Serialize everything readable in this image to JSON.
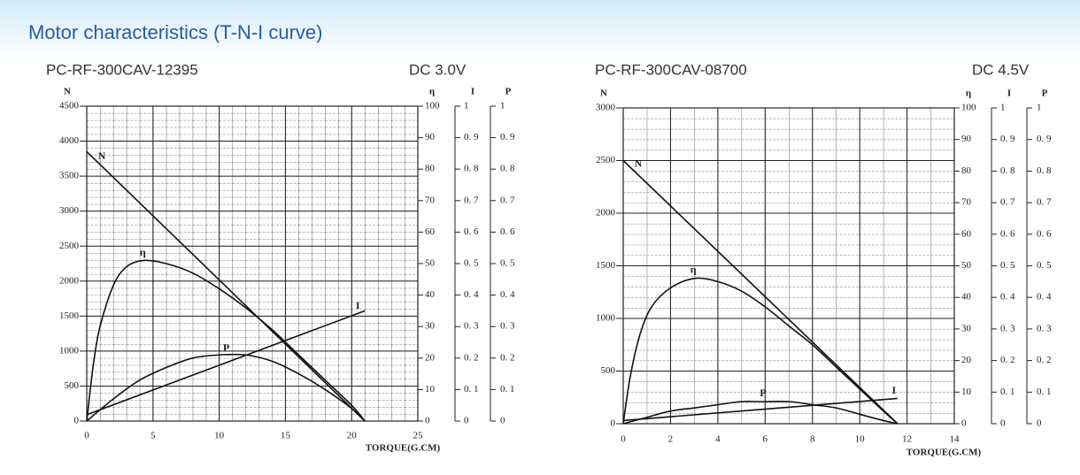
{
  "title": "Motor characteristics (T-N-I curve)",
  "chart_data": [
    {
      "type": "line",
      "title": "PC-RF-300CAV-12395",
      "subtitle": "DC 3.0V",
      "x_label": "TORQUE(G.CM)",
      "y_label": "N",
      "y2_label": "η",
      "y3_label": "I",
      "y4_label": "P",
      "grid": true,
      "color": "#111111",
      "xlim": [
        0,
        25
      ],
      "xticks": [
        0,
        5,
        10,
        15,
        20,
        25
      ],
      "ylim": [
        0,
        4500
      ],
      "yticks": [
        0,
        500,
        1000,
        1500,
        2000,
        2500,
        3000,
        3500,
        4000,
        4500
      ],
      "y2lim": [
        0,
        100
      ],
      "y2ticks": [
        0,
        10,
        20,
        30,
        40,
        50,
        60,
        70,
        80,
        90,
        100
      ],
      "y3lim": [
        0,
        1
      ],
      "y3ticks": [
        0,
        {
          "value": 0.1,
          "label": "0. 1"
        },
        {
          "value": 0.2,
          "label": "0. 2"
        },
        {
          "value": 0.3,
          "label": "0. 3"
        },
        {
          "value": 0.4,
          "label": "0. 4"
        },
        {
          "value": 0.5,
          "label": "0. 5"
        },
        {
          "value": 0.6,
          "label": "0. 6"
        },
        {
          "value": 0.7,
          "label": "0. 7"
        },
        {
          "value": 0.8,
          "label": "0. 8"
        },
        {
          "value": 0.9,
          "label": "0. 9"
        },
        1
      ],
      "y4lim": [
        0,
        1
      ],
      "y4ticks": [
        0,
        {
          "value": 0.1,
          "label": "0. 1"
        },
        {
          "value": 0.2,
          "label": "0. 2"
        },
        {
          "value": 0.3,
          "label": "0. 3"
        },
        {
          "value": 0.4,
          "label": "0. 4"
        },
        {
          "value": 0.5,
          "label": "0. 5"
        },
        {
          "value": 0.6,
          "label": "0. 6"
        },
        {
          "value": 0.7,
          "label": "0. 7"
        },
        {
          "value": 0.8,
          "label": "0. 8"
        },
        {
          "value": 0.9,
          "label": "0. 9"
        },
        1
      ],
      "series": [
        {
          "name": "N",
          "axis": "y",
          "x": [
            0,
            21
          ],
          "values": [
            3850,
            0
          ]
        },
        {
          "name": "η",
          "axis": "y2",
          "x": [
            0,
            0.5,
            1,
            2,
            3,
            4.3,
            6,
            8,
            10,
            12,
            14,
            16,
            18,
            20,
            21
          ],
          "values": [
            0,
            18,
            30,
            43,
            49,
            51,
            50,
            47,
            42,
            36,
            29,
            21,
            13,
            5,
            0
          ]
        },
        {
          "name": "P",
          "axis": "y4",
          "x": [
            0,
            2,
            4,
            6,
            8,
            10,
            12,
            14,
            16,
            18,
            20,
            21
          ],
          "values": [
            0,
            0.07,
            0.13,
            0.17,
            0.2,
            0.21,
            0.21,
            0.19,
            0.15,
            0.1,
            0.04,
            0
          ]
        },
        {
          "name": "I",
          "axis": "y3",
          "x": [
            0,
            21
          ],
          "values": [
            0.02,
            0.35
          ]
        }
      ]
    },
    {
      "type": "line",
      "title": "PC-RF-300CAV-08700",
      "subtitle": "DC 4.5V",
      "x_label": "TORQUE(G.CM)",
      "y_label": "N",
      "y2_label": "η",
      "y3_label": "I",
      "y4_label": "P",
      "grid": true,
      "color": "#111111",
      "xlim": [
        0,
        14
      ],
      "xticks": [
        0,
        2,
        4,
        6,
        8,
        10,
        12,
        14
      ],
      "ylim": [
        0,
        3000
      ],
      "yticks": [
        0,
        500,
        1000,
        1500,
        2000,
        2500,
        3000
      ],
      "y2lim": [
        0,
        100
      ],
      "y2ticks": [
        0,
        10,
        20,
        30,
        40,
        50,
        60,
        70,
        80,
        90,
        100
      ],
      "y3lim": [
        0,
        1
      ],
      "y3ticks": [
        0,
        {
          "value": 0.1,
          "label": "0. 1"
        },
        {
          "value": 0.2,
          "label": "0. 2"
        },
        {
          "value": 0.3,
          "label": "0. 3"
        },
        {
          "value": 0.4,
          "label": "0. 4"
        },
        {
          "value": 0.5,
          "label": "0. 5"
        },
        {
          "value": 0.6,
          "label": "0. 6"
        },
        {
          "value": 0.7,
          "label": "0. 7"
        },
        {
          "value": 0.8,
          "label": "0. 8"
        },
        {
          "value": 0.9,
          "label": "0. 9"
        },
        1
      ],
      "y4lim": [
        0,
        1
      ],
      "y4ticks": [
        0,
        {
          "value": 0.1,
          "label": "0. 1"
        },
        {
          "value": 0.2,
          "label": "0. 2"
        },
        {
          "value": 0.3,
          "label": "0. 3"
        },
        {
          "value": 0.4,
          "label": "0. 4"
        },
        {
          "value": 0.5,
          "label": "0. 5"
        },
        {
          "value": 0.6,
          "label": "0. 6"
        },
        {
          "value": 0.7,
          "label": "0. 7"
        },
        {
          "value": 0.8,
          "label": "0. 8"
        },
        {
          "value": 0.9,
          "label": "0. 9"
        },
        1
      ],
      "series": [
        {
          "name": "N",
          "axis": "y",
          "x": [
            0,
            11.6
          ],
          "values": [
            2500,
            0
          ]
        },
        {
          "name": "η",
          "axis": "y2",
          "x": [
            0,
            0.3,
            0.7,
            1.2,
            2,
            3,
            4,
            5,
            6,
            7,
            8,
            9,
            10,
            11,
            11.6
          ],
          "values": [
            0,
            15,
            28,
            37,
            43,
            46,
            45,
            42,
            37,
            31,
            25,
            18,
            11,
            4,
            0
          ]
        },
        {
          "name": "P",
          "axis": "y4",
          "x": [
            0,
            1,
            2,
            3,
            4,
            5,
            5.8,
            7,
            8,
            9,
            10,
            11,
            11.6
          ],
          "values": [
            0,
            0.02,
            0.04,
            0.05,
            0.06,
            0.07,
            0.07,
            0.07,
            0.06,
            0.05,
            0.03,
            0.01,
            0
          ]
        },
        {
          "name": "I",
          "axis": "y3",
          "x": [
            0,
            11.6
          ],
          "values": [
            0.01,
            0.08
          ]
        }
      ]
    }
  ]
}
